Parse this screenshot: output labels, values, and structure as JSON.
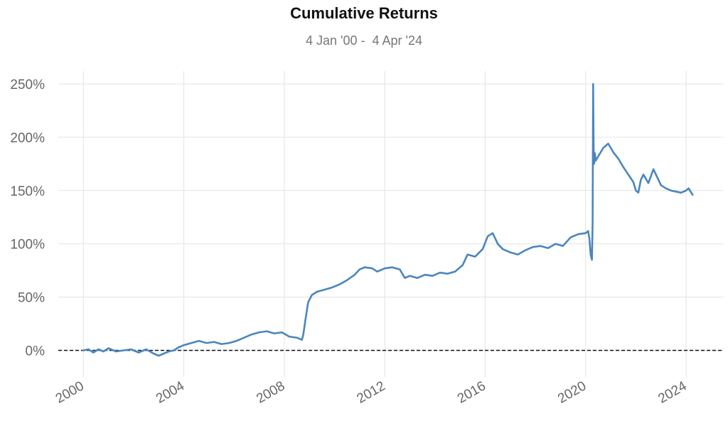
{
  "title": "Cumulative Returns",
  "subtitle": "4 Jan '00 -  4 Apr '24",
  "colors": {
    "line": "#4a86bf",
    "grid": "#e3e3e3",
    "baseline": "#111111",
    "tick": "#666666"
  },
  "chart_data": {
    "type": "line",
    "title": "Cumulative Returns",
    "subtitle": "4 Jan '00 -  4 Apr '24",
    "xlabel": "",
    "ylabel": "",
    "xlim": [
      1999.0,
      2025.5
    ],
    "ylim": [
      -25,
      262
    ],
    "x_ticks": [
      2000,
      2004,
      2008,
      2012,
      2016,
      2020,
      2024
    ],
    "x_tick_labels": [
      "2000",
      "2004",
      "2008",
      "2012",
      "2016",
      "2020",
      "2024"
    ],
    "y_ticks": [
      0,
      50,
      100,
      150,
      200,
      250
    ],
    "y_tick_labels": [
      "0%",
      "50%",
      "100%",
      "150%",
      "200%",
      "250%"
    ],
    "grid": true,
    "baseline": {
      "y": 0,
      "style": "dashed"
    },
    "series": [
      {
        "x": [
          2000.0,
          2000.2,
          2000.4,
          2000.6,
          2000.8,
          2001.0,
          2001.3,
          2001.6,
          2001.9,
          2002.2,
          2002.5,
          2002.8,
          2003.0,
          2003.2,
          2003.4,
          2003.6,
          2003.8,
          2004.0,
          2004.3,
          2004.6,
          2004.9,
          2005.2,
          2005.5,
          2005.8,
          2006.1,
          2006.4,
          2006.7,
          2007.0,
          2007.3,
          2007.6,
          2007.9,
          2008.2,
          2008.5,
          2008.7,
          2008.75,
          2008.85,
          2008.95,
          2009.1,
          2009.3,
          2009.6,
          2009.9,
          2010.2,
          2010.5,
          2010.8,
          2011.0,
          2011.2,
          2011.5,
          2011.7,
          2012.0,
          2012.3,
          2012.6,
          2012.8,
          2013.0,
          2013.3,
          2013.6,
          2013.9,
          2014.2,
          2014.5,
          2014.8,
          2015.1,
          2015.3,
          2015.6,
          2015.9,
          2016.1,
          2016.3,
          2016.5,
          2016.7,
          2017.0,
          2017.3,
          2017.6,
          2017.9,
          2018.2,
          2018.5,
          2018.8,
          2019.1,
          2019.4,
          2019.7,
          2020.0,
          2020.1,
          2020.15,
          2020.2,
          2020.25,
          2020.28,
          2020.3,
          2020.32,
          2020.34,
          2020.37,
          2020.4,
          2020.5,
          2020.7,
          2020.9,
          2021.1,
          2021.3,
          2021.5,
          2021.7,
          2021.9,
          2022.0,
          2022.1,
          2022.2,
          2022.3,
          2022.5,
          2022.7,
          2022.9,
          2023.0,
          2023.2,
          2023.4,
          2023.6,
          2023.8,
          2024.0,
          2024.1,
          2024.26
        ],
        "values": [
          0,
          1,
          -2,
          1,
          -1,
          2,
          -1,
          0,
          1,
          -2,
          1,
          -3,
          -5,
          -3,
          -1,
          0,
          3,
          5,
          7,
          9,
          7,
          8,
          6,
          7,
          9,
          12,
          15,
          17,
          18,
          16,
          17,
          13,
          12,
          10,
          14,
          30,
          45,
          52,
          55,
          57,
          59,
          62,
          66,
          71,
          76,
          78,
          77,
          74,
          77,
          78,
          76,
          68,
          70,
          68,
          71,
          70,
          73,
          72,
          74,
          80,
          90,
          88,
          95,
          107,
          110,
          100,
          95,
          92,
          90,
          94,
          97,
          98,
          96,
          100,
          98,
          106,
          109,
          110,
          112,
          105,
          90,
          85,
          120,
          250,
          190,
          175,
          185,
          178,
          182,
          190,
          194,
          186,
          180,
          172,
          165,
          158,
          150,
          148,
          160,
          165,
          157,
          170,
          160,
          155,
          152,
          150,
          149,
          148,
          150,
          152,
          146
        ]
      }
    ]
  }
}
